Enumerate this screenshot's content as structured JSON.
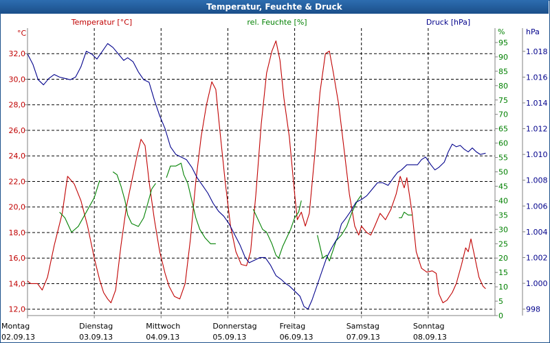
{
  "chart_data": {
    "type": "line",
    "title": "Temperatur, Feuchte & Druck",
    "colors": {
      "temperature": "#c00000",
      "humidity": "#008000",
      "pressure": "#00008b",
      "grid": "#000000",
      "title_bg": "#1b4f8a"
    },
    "x_range": [
      0,
      7
    ],
    "days": [
      {
        "name": "Montag",
        "date": "02.09.13"
      },
      {
        "name": "Dienstag",
        "date": "03.09.13"
      },
      {
        "name": "Mittwoch",
        "date": "04.09.13"
      },
      {
        "name": "Donnerstag",
        "date": "05.09.13"
      },
      {
        "name": "Freitag",
        "date": "06.09.13"
      },
      {
        "name": "Samstag",
        "date": "07.09.13"
      },
      {
        "name": "Sonntag",
        "date": "08.09.13"
      }
    ],
    "axes": {
      "temperature": {
        "label": "Temperatur [°C]",
        "unit": "°C",
        "range": [
          11.5,
          34.0
        ],
        "ticks": [
          "12,0",
          "14,0",
          "16,0",
          "18,0",
          "20,0",
          "22,0",
          "24,0",
          "26,0",
          "28,0",
          "30,0",
          "32,0"
        ]
      },
      "humidity": {
        "label": "rel. Feuchte [%]",
        "unit": "%",
        "range": [
          0,
          100
        ],
        "ticks": [
          "0",
          "5",
          "10",
          "15",
          "20",
          "25",
          "30",
          "35",
          "40",
          "45",
          "50",
          "55",
          "60",
          "65",
          "70",
          "75",
          "80",
          "85",
          "90",
          "95"
        ]
      },
      "pressure": {
        "label": "Druck [hPa]",
        "unit": "hPa",
        "range": [
          997.5,
          1019.8
        ],
        "ticks": [
          "998",
          "1.000",
          "1.002",
          "1.004",
          "1.006",
          "1.008",
          "1.010",
          "1.012",
          "1.014",
          "1.016",
          "1.018"
        ]
      }
    },
    "series": [
      {
        "name": "Temperatur",
        "key": "temperature",
        "segments": [
          [
            [
              0.0,
              14.2
            ],
            [
              0.05,
              14.0
            ],
            [
              0.15,
              14.0
            ],
            [
              0.22,
              13.5
            ],
            [
              0.3,
              14.5
            ],
            [
              0.4,
              17.0
            ],
            [
              0.52,
              19.5
            ],
            [
              0.6,
              22.4
            ],
            [
              0.7,
              21.8
            ],
            [
              0.8,
              20.5
            ],
            [
              0.9,
              18.5
            ],
            [
              1.0,
              16.0
            ],
            [
              1.08,
              14.3
            ],
            [
              1.14,
              13.3
            ],
            [
              1.2,
              12.8
            ],
            [
              1.25,
              12.5
            ],
            [
              1.32,
              13.5
            ],
            [
              1.4,
              17.0
            ],
            [
              1.48,
              20.0
            ],
            [
              1.56,
              22.0
            ],
            [
              1.64,
              24.0
            ],
            [
              1.7,
              25.3
            ],
            [
              1.76,
              24.8
            ],
            [
              1.82,
              22.0
            ],
            [
              1.9,
              19.0
            ],
            [
              1.98,
              16.5
            ],
            [
              2.06,
              14.8
            ],
            [
              2.12,
              13.8
            ],
            [
              2.2,
              13.0
            ],
            [
              2.28,
              12.8
            ],
            [
              2.36,
              14.0
            ],
            [
              2.44,
              17.5
            ],
            [
              2.52,
              22.0
            ],
            [
              2.6,
              25.5
            ],
            [
              2.68,
              28.0
            ],
            [
              2.76,
              29.8
            ],
            [
              2.82,
              29.2
            ],
            [
              2.88,
              26.0
            ],
            [
              2.96,
              22.0
            ],
            [
              3.04,
              18.5
            ],
            [
              3.12,
              16.5
            ],
            [
              3.2,
              15.5
            ],
            [
              3.28,
              15.4
            ],
            [
              3.34,
              16.5
            ],
            [
              3.42,
              21.0
            ],
            [
              3.5,
              26.5
            ],
            [
              3.58,
              30.5
            ],
            [
              3.66,
              32.2
            ],
            [
              3.72,
              33.0
            ],
            [
              3.78,
              31.5
            ],
            [
              3.84,
              28.5
            ],
            [
              3.92,
              25.5
            ],
            [
              4.0,
              21.0
            ],
            [
              4.04,
              19.0
            ],
            [
              4.1,
              19.6
            ],
            [
              4.16,
              18.5
            ],
            [
              4.22,
              19.5
            ],
            [
              4.3,
              24.0
            ],
            [
              4.38,
              29.0
            ],
            [
              4.46,
              32.0
            ],
            [
              4.52,
              32.2
            ],
            [
              4.58,
              30.5
            ],
            [
              4.66,
              28.0
            ],
            [
              4.74,
              24.5
            ],
            [
              4.82,
              21.0
            ],
            [
              4.9,
              18.5
            ],
            [
              4.96,
              17.8
            ],
            [
              5.0,
              18.5
            ],
            [
              5.08,
              18.0
            ],
            [
              5.14,
              17.8
            ],
            [
              5.2,
              18.5
            ],
            [
              5.28,
              19.5
            ],
            [
              5.36,
              19.0
            ],
            [
              5.44,
              19.8
            ],
            [
              5.52,
              21.0
            ],
            [
              5.58,
              22.4
            ],
            [
              5.64,
              21.5
            ],
            [
              5.68,
              22.3
            ],
            [
              5.76,
              19.5
            ],
            [
              5.82,
              16.5
            ],
            [
              5.9,
              15.2
            ],
            [
              5.98,
              14.9
            ],
            [
              6.06,
              15.0
            ],
            [
              6.12,
              14.8
            ],
            [
              6.16,
              13.2
            ],
            [
              6.22,
              12.5
            ],
            [
              6.28,
              12.7
            ],
            [
              6.36,
              13.3
            ],
            [
              6.42,
              14.0
            ],
            [
              6.5,
              15.5
            ],
            [
              6.56,
              16.8
            ],
            [
              6.6,
              16.5
            ],
            [
              6.64,
              17.5
            ],
            [
              6.7,
              16.0
            ],
            [
              6.76,
              14.5
            ],
            [
              6.82,
              13.8
            ],
            [
              6.86,
              13.6
            ]
          ]
        ]
      },
      {
        "name": "rel. Feuchte",
        "key": "humidity",
        "segments": [
          [
            [
              0.48,
              36
            ],
            [
              0.56,
              34
            ],
            [
              0.66,
              29
            ],
            [
              0.76,
              31
            ],
            [
              0.88,
              36
            ],
            [
              1.0,
              41
            ],
            [
              1.08,
              47
            ]
          ],
          [
            [
              1.28,
              50
            ],
            [
              1.34,
              49
            ],
            [
              1.4,
              45
            ],
            [
              1.46,
              40
            ],
            [
              1.5,
              35
            ],
            [
              1.56,
              32
            ],
            [
              1.66,
              31
            ],
            [
              1.74,
              34
            ],
            [
              1.8,
              39
            ],
            [
              1.86,
              44
            ],
            [
              1.92,
              46
            ]
          ],
          [
            [
              2.08,
              48
            ],
            [
              2.14,
              52
            ],
            [
              2.22,
              52
            ],
            [
              2.3,
              53
            ],
            [
              2.34,
              49
            ],
            [
              2.4,
              46
            ],
            [
              2.46,
              40
            ],
            [
              2.52,
              34
            ],
            [
              2.58,
              30
            ],
            [
              2.66,
              27
            ],
            [
              2.74,
              25
            ],
            [
              2.82,
              25
            ]
          ],
          [
            [
              3.38,
              37
            ],
            [
              3.46,
              33
            ],
            [
              3.52,
              30
            ],
            [
              3.58,
              29
            ],
            [
              3.66,
              25
            ],
            [
              3.72,
              21
            ],
            [
              3.76,
              20
            ],
            [
              3.82,
              24
            ],
            [
              3.88,
              27
            ],
            [
              3.94,
              30
            ],
            [
              4.0,
              34
            ],
            [
              4.06,
              36
            ],
            [
              4.1,
              40
            ]
          ],
          [
            [
              4.34,
              28
            ],
            [
              4.38,
              24
            ],
            [
              4.42,
              20
            ],
            [
              4.48,
              21
            ],
            [
              4.52,
              19
            ],
            [
              4.58,
              23
            ],
            [
              4.62,
              26
            ],
            [
              4.7,
              28
            ],
            [
              4.78,
              31
            ],
            [
              4.86,
              36
            ],
            [
              4.94,
              40
            ],
            [
              5.0,
              42
            ]
          ],
          [
            [
              5.56,
              34
            ],
            [
              5.6,
              34
            ],
            [
              5.64,
              36
            ],
            [
              5.7,
              35
            ],
            [
              5.76,
              35
            ]
          ]
        ]
      },
      {
        "name": "Druck",
        "key": "pressure",
        "segments": [
          [
            [
              0.0,
              1017.8
            ],
            [
              0.08,
              1017.0
            ],
            [
              0.16,
              1015.8
            ],
            [
              0.24,
              1015.4
            ],
            [
              0.32,
              1015.9
            ],
            [
              0.4,
              1016.2
            ],
            [
              0.48,
              1016.0
            ],
            [
              0.56,
              1015.9
            ],
            [
              0.64,
              1015.8
            ],
            [
              0.72,
              1016.0
            ],
            [
              0.8,
              1016.8
            ],
            [
              0.88,
              1018.0
            ],
            [
              0.96,
              1017.8
            ],
            [
              1.04,
              1017.4
            ],
            [
              1.12,
              1018.0
            ],
            [
              1.2,
              1018.6
            ],
            [
              1.28,
              1018.3
            ],
            [
              1.36,
              1017.8
            ],
            [
              1.44,
              1017.3
            ],
            [
              1.5,
              1017.5
            ],
            [
              1.58,
              1017.2
            ],
            [
              1.66,
              1016.4
            ],
            [
              1.74,
              1015.8
            ],
            [
              1.82,
              1015.6
            ],
            [
              1.9,
              1014.2
            ],
            [
              1.98,
              1013.0
            ],
            [
              2.06,
              1012.0
            ],
            [
              2.14,
              1010.6
            ],
            [
              2.22,
              1010.0
            ],
            [
              2.3,
              1009.8
            ],
            [
              2.38,
              1009.6
            ],
            [
              2.46,
              1009.0
            ],
            [
              2.54,
              1008.2
            ],
            [
              2.62,
              1007.6
            ],
            [
              2.7,
              1007.0
            ],
            [
              2.78,
              1006.2
            ],
            [
              2.86,
              1005.6
            ],
            [
              2.94,
              1005.2
            ],
            [
              3.02,
              1004.6
            ],
            [
              3.1,
              1003.8
            ],
            [
              3.18,
              1003.0
            ],
            [
              3.26,
              1002.0
            ],
            [
              3.32,
              1001.6
            ],
            [
              3.4,
              1001.8
            ],
            [
              3.48,
              1002.0
            ],
            [
              3.56,
              1002.0
            ],
            [
              3.64,
              1001.4
            ],
            [
              3.72,
              1000.6
            ],
            [
              3.8,
              1000.3
            ],
            [
              3.86,
              1000.0
            ],
            [
              3.92,
              999.8
            ],
            [
              4.0,
              999.4
            ],
            [
              4.08,
              999.0
            ],
            [
              4.14,
              998.2
            ],
            [
              4.2,
              998.0
            ],
            [
              4.26,
              998.7
            ],
            [
              4.32,
              999.6
            ],
            [
              4.4,
              1000.8
            ],
            [
              4.48,
              1002.0
            ],
            [
              4.56,
              1002.8
            ],
            [
              4.64,
              1003.5
            ],
            [
              4.7,
              1004.6
            ],
            [
              4.76,
              1005.0
            ],
            [
              4.84,
              1005.6
            ],
            [
              4.92,
              1006.3
            ],
            [
              5.0,
              1006.5
            ],
            [
              5.08,
              1006.8
            ],
            [
              5.16,
              1007.3
            ],
            [
              5.24,
              1007.8
            ],
            [
              5.32,
              1007.8
            ],
            [
              5.4,
              1007.6
            ],
            [
              5.48,
              1008.2
            ],
            [
              5.54,
              1008.6
            ],
            [
              5.6,
              1008.8
            ],
            [
              5.68,
              1009.2
            ],
            [
              5.76,
              1009.2
            ],
            [
              5.84,
              1009.2
            ],
            [
              5.9,
              1009.6
            ],
            [
              5.96,
              1009.8
            ],
            [
              6.04,
              1009.2
            ],
            [
              6.1,
              1008.8
            ],
            [
              6.16,
              1009.0
            ],
            [
              6.24,
              1009.4
            ],
            [
              6.3,
              1010.2
            ],
            [
              6.36,
              1010.8
            ],
            [
              6.42,
              1010.6
            ],
            [
              6.48,
              1010.7
            ],
            [
              6.54,
              1010.4
            ],
            [
              6.6,
              1010.2
            ],
            [
              6.66,
              1010.5
            ],
            [
              6.72,
              1010.2
            ],
            [
              6.78,
              1010.0
            ],
            [
              6.86,
              1010.1
            ]
          ]
        ]
      }
    ]
  }
}
